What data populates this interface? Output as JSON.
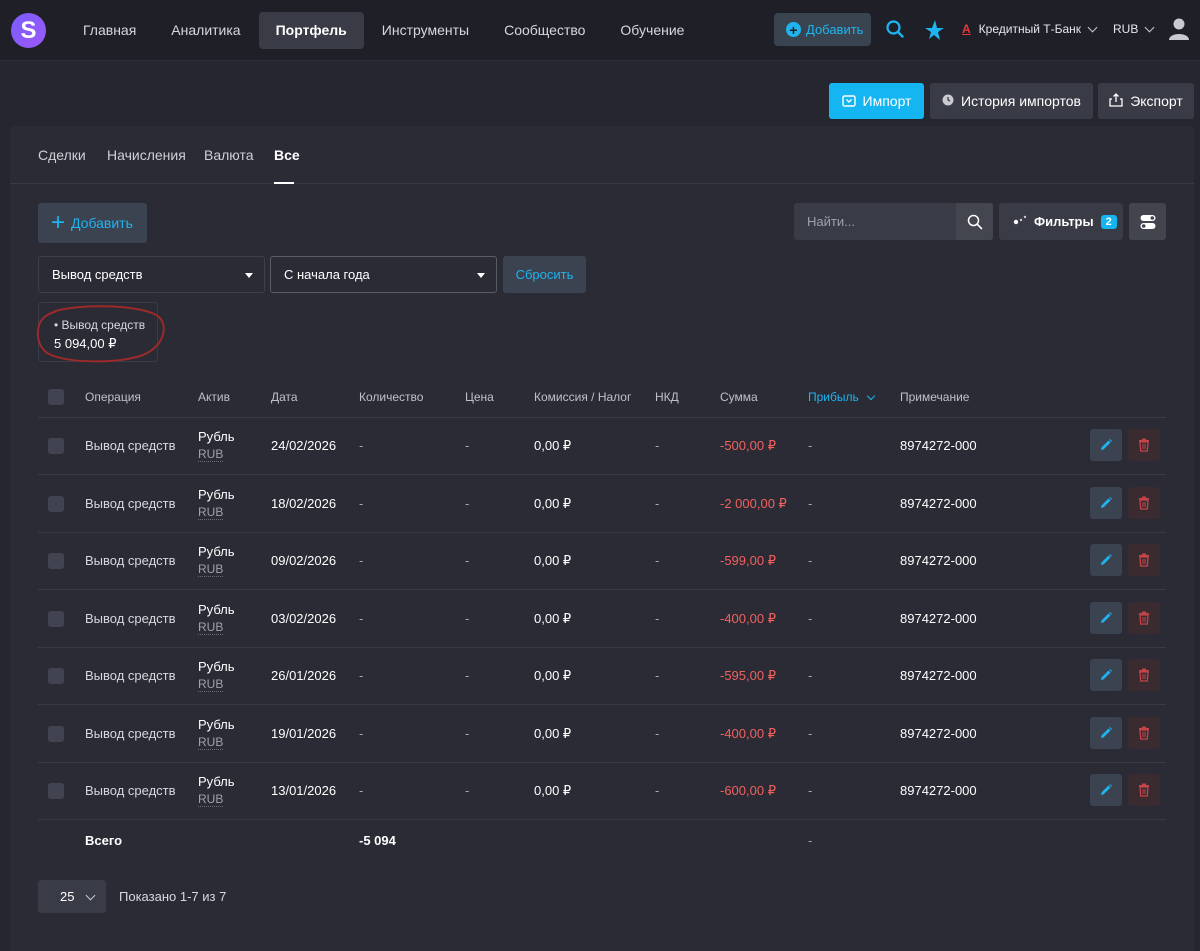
{
  "nav": {
    "logo": "S",
    "links": [
      "Главная",
      "Аналитика",
      "Портфель",
      "Инструменты",
      "Сообщество",
      "Обучение"
    ],
    "active_link": "Портфель",
    "add_label": "Добавить",
    "broker_badge": "A",
    "broker": "Кредитный Т-Банк",
    "currency": "RUB"
  },
  "actions": {
    "import_label": "Импорт",
    "history_label": "История импортов",
    "export_label": "Экспорт"
  },
  "tabs": [
    "Сделки",
    "Начисления",
    "Валюта",
    "Все"
  ],
  "active_tab": "Все",
  "toolbar": {
    "add_label": "Добавить",
    "search_placeholder": "Найти...",
    "filters_label": "Фильтры",
    "filters_count": "2"
  },
  "filters": {
    "operation": "Вывод средств",
    "period": "С начала года",
    "reset_label": "Сбросить"
  },
  "summary": {
    "label": "• Вывод средств",
    "value": "5 094,00 ₽"
  },
  "table": {
    "headers": [
      "Операция",
      "Актив",
      "Дата",
      "Количество",
      "Цена",
      "Комиссия / Налог",
      "НКД",
      "Сумма",
      "Прибыль",
      "Примечание"
    ],
    "sorted_column": "Прибыль",
    "rows": [
      {
        "op": "Вывод средств",
        "asset": "Рубль",
        "code": "RUB",
        "date": "24/02/2026",
        "qty": "-",
        "price": "-",
        "fee": "0,00 ₽",
        "nkd": "-",
        "sum": "-500,00 ₽",
        "profit": "-",
        "note": "8974272-000"
      },
      {
        "op": "Вывод средств",
        "asset": "Рубль",
        "code": "RUB",
        "date": "18/02/2026",
        "qty": "-",
        "price": "-",
        "fee": "0,00 ₽",
        "nkd": "-",
        "sum": "-2 000,00 ₽",
        "profit": "-",
        "note": "8974272-000"
      },
      {
        "op": "Вывод средств",
        "asset": "Рубль",
        "code": "RUB",
        "date": "09/02/2026",
        "qty": "-",
        "price": "-",
        "fee": "0,00 ₽",
        "nkd": "-",
        "sum": "-599,00 ₽",
        "profit": "-",
        "note": "8974272-000"
      },
      {
        "op": "Вывод средств",
        "asset": "Рубль",
        "code": "RUB",
        "date": "03/02/2026",
        "qty": "-",
        "price": "-",
        "fee": "0,00 ₽",
        "nkd": "-",
        "sum": "-400,00 ₽",
        "profit": "-",
        "note": "8974272-000"
      },
      {
        "op": "Вывод средств",
        "asset": "Рубль",
        "code": "RUB",
        "date": "26/01/2026",
        "qty": "-",
        "price": "-",
        "fee": "0,00 ₽",
        "nkd": "-",
        "sum": "-595,00 ₽",
        "profit": "-",
        "note": "8974272-000"
      },
      {
        "op": "Вывод средств",
        "asset": "Рубль",
        "code": "RUB",
        "date": "19/01/2026",
        "qty": "-",
        "price": "-",
        "fee": "0,00 ₽",
        "nkd": "-",
        "sum": "-400,00 ₽",
        "profit": "-",
        "note": "8974272-000"
      },
      {
        "op": "Вывод средств",
        "asset": "Рубль",
        "code": "RUB",
        "date": "13/01/2026",
        "qty": "-",
        "price": "-",
        "fee": "0,00 ₽",
        "nkd": "-",
        "sum": "-600,00 ₽",
        "profit": "-",
        "note": "8974272-000"
      }
    ],
    "total": {
      "label": "Всего",
      "qty": "-5 094",
      "profit": "-"
    }
  },
  "pager": {
    "per_page": "25",
    "info": "Показано 1-7 из 7"
  },
  "colors": {
    "accent": "#14b5f0",
    "negative": "#f2615e",
    "background": "#25262f",
    "card": "#2a2b35",
    "annotation": "#9b2a2a"
  }
}
